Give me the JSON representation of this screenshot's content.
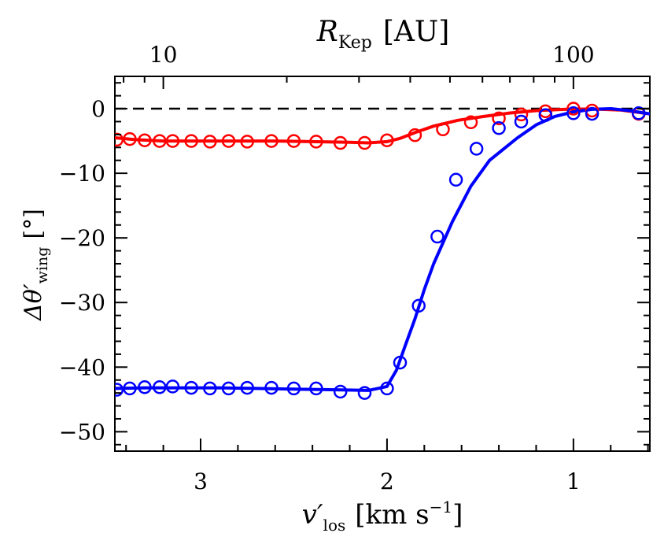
{
  "chart_data": {
    "type": "line",
    "xlabel_main": "v′",
    "xlabel_sub": "los",
    "xlabel_units": "[km s",
    "xlabel_exp": "−1",
    "xlabel_close": "]",
    "ylabel_main": "Δθ′",
    "ylabel_sub": "wing",
    "ylabel_units": "[°]",
    "top_label_main": "R",
    "top_label_sub": "Kep",
    "top_label_units": "[AU]",
    "x_reversed": true,
    "xlim": [
      3.46,
      0.59
    ],
    "ylim": [
      -53,
      5
    ],
    "x_ticks": [
      3,
      2,
      1
    ],
    "x_tick_labels": [
      "3",
      "2",
      "1"
    ],
    "y_ticks": [
      0,
      -10,
      -20,
      -30,
      -40,
      -50
    ],
    "y_tick_labels": [
      "0",
      "−10",
      "−20",
      "−30",
      "−40",
      "−50"
    ],
    "top_ticks": [
      {
        "x": 3.2,
        "label": "10"
      },
      {
        "x": 1.0,
        "label": "100"
      }
    ],
    "reference_line": {
      "y": 0,
      "style": "dashed",
      "color": "#000000"
    },
    "series": [
      {
        "color": "#ff0000",
        "model_line": {
          "x": [
            3.46,
            3.35,
            3.2,
            3.0,
            2.8,
            2.6,
            2.4,
            2.2,
            2.1,
            2.0,
            1.93,
            1.85,
            1.75,
            1.62,
            1.48,
            1.35,
            1.2,
            1.05,
            0.9,
            0.75,
            0.59
          ],
          "y": [
            -4.5,
            -4.8,
            -5.0,
            -5.0,
            -5.0,
            -5.0,
            -5.1,
            -5.2,
            -5.3,
            -5.1,
            -4.6,
            -3.7,
            -2.7,
            -1.8,
            -1.2,
            -0.7,
            -0.3,
            -0.1,
            -0.05,
            -0.2,
            -0.8
          ]
        },
        "points": {
          "x": [
            3.45,
            3.38,
            3.3,
            3.22,
            3.15,
            3.05,
            2.95,
            2.85,
            2.75,
            2.62,
            2.5,
            2.38,
            2.25,
            2.12,
            2.0,
            1.85,
            1.7,
            1.55,
            1.4,
            1.28,
            1.15,
            1.0,
            0.9,
            0.65
          ],
          "y": [
            -4.8,
            -4.7,
            -4.9,
            -5.0,
            -5.0,
            -5.0,
            -5.1,
            -5.0,
            -5.1,
            -5.0,
            -5.0,
            -5.1,
            -5.3,
            -5.3,
            -4.9,
            -4.1,
            -3.2,
            -2.1,
            -1.5,
            -0.9,
            -0.4,
            0.0,
            -0.3,
            -0.8
          ]
        }
      },
      {
        "color": "#0000ff",
        "model_line": {
          "x": [
            3.46,
            3.3,
            3.1,
            2.9,
            2.7,
            2.5,
            2.3,
            2.1,
            2.0,
            1.95,
            1.9,
            1.85,
            1.8,
            1.75,
            1.65,
            1.55,
            1.45,
            1.3,
            1.2,
            1.1,
            1.0,
            0.9,
            0.8,
            0.7,
            0.59
          ],
          "y": [
            -43.3,
            -43.2,
            -43.2,
            -43.2,
            -43.3,
            -43.4,
            -43.5,
            -43.6,
            -43.0,
            -40.5,
            -36.5,
            -32.5,
            -28.0,
            -24.0,
            -17.5,
            -12.0,
            -8.0,
            -4.5,
            -2.5,
            -1.2,
            -0.5,
            -0.1,
            0.0,
            -0.3,
            -0.8
          ]
        },
        "points": {
          "x": [
            3.45,
            3.38,
            3.3,
            3.22,
            3.15,
            3.05,
            2.95,
            2.85,
            2.75,
            2.62,
            2.5,
            2.38,
            2.25,
            2.12,
            2.0,
            1.93,
            1.83,
            1.73,
            1.63,
            1.52,
            1.4,
            1.28,
            1.15,
            1.0,
            0.9,
            0.65
          ],
          "y": [
            -43.5,
            -43.3,
            -43.1,
            -43.1,
            -43.0,
            -43.2,
            -43.3,
            -43.3,
            -43.2,
            -43.2,
            -43.3,
            -43.3,
            -43.8,
            -44.0,
            -43.3,
            -39.3,
            -30.5,
            -19.8,
            -11.0,
            -6.2,
            -3.0,
            -2.0,
            -1.0,
            -0.7,
            -0.8,
            -0.7
          ]
        }
      }
    ]
  }
}
